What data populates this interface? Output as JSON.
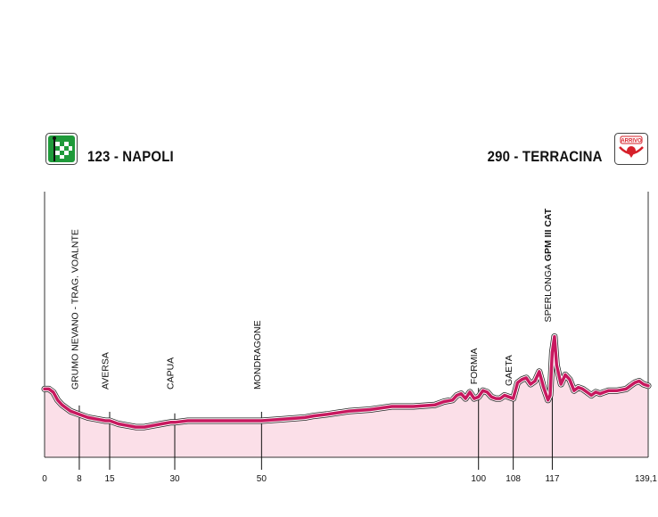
{
  "header": {
    "start_city": "123 - NAPOLI",
    "finish_city": "290 - TERRACINA",
    "finish_badge_text": "ARRIVO",
    "start_icon": "checkered-flag-icon",
    "finish_icon": "finish-arrival-icon"
  },
  "colors": {
    "profile_line": "#c8185f",
    "profile_fill": "#fbdfe8",
    "start_badge": "#1f9a3a",
    "finish_badge": "#d6202a",
    "axis": "#333333"
  },
  "chart_data": {
    "type": "area",
    "title": "",
    "xlabel": "",
    "ylabel": "",
    "xlim": [
      0,
      139.1
    ],
    "km_ticks": [
      "0",
      "8",
      "15",
      "30",
      "50",
      "100",
      "108",
      "117",
      "139,1"
    ],
    "landmarks": [
      {
        "km": 8,
        "name": "GRUMO NEVANO - TRAG. VOALNTE",
        "bold": ""
      },
      {
        "km": 15,
        "name": "AVERSA",
        "bold": ""
      },
      {
        "km": 30,
        "name": "CAPUA",
        "bold": ""
      },
      {
        "km": 50,
        "name": "MONDRAGONE",
        "bold": ""
      },
      {
        "km": 100,
        "name": "FORMIA",
        "bold": ""
      },
      {
        "km": 108,
        "name": "GAETA",
        "bold": ""
      },
      {
        "km": 117,
        "name": "SPERLONGA",
        "bold": "GPM III CAT"
      }
    ],
    "profile": {
      "x": [
        0,
        1,
        2,
        3,
        4,
        6,
        8,
        10,
        12,
        14,
        15,
        17,
        19,
        21,
        23,
        25,
        27,
        29,
        30,
        33,
        35,
        40,
        45,
        50,
        55,
        60,
        62,
        65,
        70,
        75,
        80,
        85,
        90,
        92,
        94,
        95,
        96,
        97,
        98,
        99,
        100,
        101,
        102,
        103,
        104,
        105,
        106,
        107,
        108,
        109,
        110,
        111,
        112,
        113,
        114,
        115,
        116,
        116.5,
        117,
        117.5,
        118,
        119,
        120,
        121,
        122,
        123,
        124,
        125,
        126,
        127,
        128,
        129,
        130,
        132,
        134,
        135,
        136,
        137,
        138,
        139.1
      ],
      "y": [
        29,
        29,
        27,
        22,
        19,
        15,
        13,
        11,
        10,
        9,
        9,
        7,
        6,
        5,
        5,
        6,
        7,
        8,
        8,
        9,
        9,
        9,
        9,
        9,
        10,
        11,
        12,
        13,
        15,
        16,
        18,
        18,
        19,
        21,
        22,
        25,
        26,
        23,
        27,
        23,
        24,
        28,
        27,
        24,
        23,
        23,
        25,
        24,
        23,
        33,
        35,
        36,
        32,
        34,
        40,
        30,
        22,
        25,
        52,
        62,
        44,
        32,
        38,
        35,
        28,
        30,
        29,
        27,
        25,
        27,
        26,
        27,
        28,
        28,
        29,
        31,
        33,
        34,
        32,
        31
      ]
    },
    "ylim": [
      0,
      100
    ],
    "grid": false
  }
}
